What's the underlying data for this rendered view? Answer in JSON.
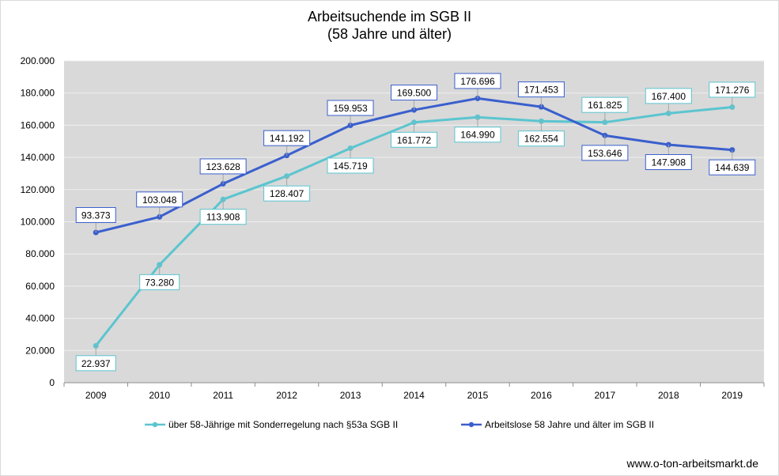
{
  "chart_data": {
    "type": "line",
    "title": "Arbeitsuchende im SGB II",
    "subtitle": "(58 Jahre und älter)",
    "categories": [
      "2009",
      "2010",
      "2011",
      "2012",
      "2013",
      "2014",
      "2015",
      "2016",
      "2017",
      "2018",
      "2019"
    ],
    "ylim": [
      0,
      200000
    ],
    "y_ticks": [
      "0",
      "20.000",
      "40.000",
      "60.000",
      "80.000",
      "100.000",
      "120.000",
      "140.000",
      "160.000",
      "180.000",
      "200.000"
    ],
    "grid": true,
    "legend_position": "bottom",
    "series": [
      {
        "name": "über 58-Jährige mit Sonderregelung nach §53a SGB II",
        "color": "#5bc5cf",
        "values": [
          22937,
          73280,
          113908,
          128407,
          145719,
          161772,
          164990,
          162554,
          161825,
          167400,
          171276
        ],
        "labels": [
          "22.937",
          "73.280",
          "113.908",
          "128.407",
          "145.719",
          "161.772",
          "164.990",
          "162.554",
          "161.825",
          "167.400",
          "171.276"
        ]
      },
      {
        "name": "Arbeitslose 58 Jahre und älter im SGB II",
        "color": "#3a5fcd",
        "values": [
          93373,
          103048,
          123628,
          141192,
          159953,
          169500,
          176696,
          171453,
          153646,
          147908,
          144639
        ],
        "labels": [
          "93.373",
          "103.048",
          "123.628",
          "141.192",
          "159.953",
          "169.500",
          "176.696",
          "171.453",
          "153.646",
          "147.908",
          "144.639"
        ]
      }
    ],
    "source": "www.o-ton-arbeitsmarkt.de"
  }
}
